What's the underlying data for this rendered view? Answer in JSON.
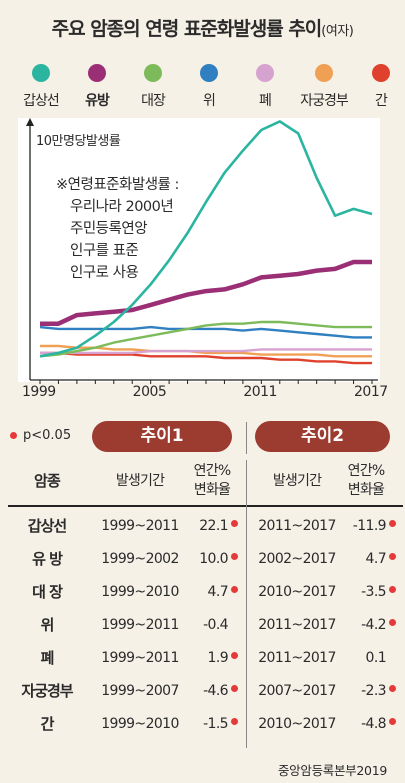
{
  "title": "주요 암종의 연령 표준화발생률 추이",
  "title_suffix": "(여자)",
  "colors": {
    "panel_bg": "#ffffff",
    "page_bg": "#f6f1e7",
    "header_pill": "#9c3b2f",
    "significance_dot": "#e53a3a"
  },
  "legend": [
    {
      "label": "갑상선",
      "color": "#2bb5a0",
      "bold": false
    },
    {
      "label": "유방",
      "color": "#9b2f75",
      "bold": true
    },
    {
      "label": "대장",
      "color": "#7dbb5a",
      "bold": false
    },
    {
      "label": "위",
      "color": "#2f7fc1",
      "bold": false
    },
    {
      "label": "폐",
      "color": "#d6a2cf",
      "bold": false
    },
    {
      "label": "자궁경부",
      "color": "#f0a055",
      "bold": false
    },
    {
      "label": "간",
      "color": "#e0412d",
      "bold": false
    }
  ],
  "chart_data": {
    "type": "line",
    "ylabel": "10만명당발생률",
    "x_ticks": [
      "1999",
      "2005",
      "2011",
      "2017"
    ],
    "x": [
      1999,
      2000,
      2001,
      2002,
      2003,
      2004,
      2005,
      2006,
      2007,
      2008,
      2009,
      2010,
      2011,
      2012,
      2013,
      2014,
      2015,
      2016,
      2017
    ],
    "ylim": [
      0,
      140
    ],
    "series": [
      {
        "name": "갑상선",
        "color": "#2bb5a0",
        "values": [
          8,
          10,
          13,
          20,
          28,
          38,
          50,
          64,
          80,
          98,
          115,
          128,
          140,
          145,
          138,
          112,
          90,
          94,
          91
        ]
      },
      {
        "name": "유방",
        "color": "#9b2f75",
        "values": [
          27,
          27,
          32,
          33,
          34,
          35,
          38,
          41,
          44,
          46,
          47,
          50,
          54,
          55,
          56,
          58,
          59,
          63,
          63
        ]
      },
      {
        "name": "대장",
        "color": "#7dbb5a",
        "values": [
          8,
          9,
          11,
          13,
          16,
          18,
          20,
          22,
          24,
          26,
          27,
          27,
          28,
          28,
          27,
          26,
          25,
          25,
          25
        ]
      },
      {
        "name": "위",
        "color": "#2f7fc1",
        "values": [
          25,
          24,
          24,
          24,
          24,
          24,
          25,
          24,
          24,
          24,
          24,
          23,
          24,
          23,
          22,
          21,
          20,
          19,
          19
        ]
      },
      {
        "name": "폐",
        "color": "#d6a2cf",
        "values": [
          10,
          10,
          10,
          10,
          10,
          10,
          11,
          11,
          11,
          11,
          11,
          11,
          12,
          12,
          12,
          12,
          12,
          12,
          12
        ]
      },
      {
        "name": "자궁경부",
        "color": "#f0a055",
        "values": [
          14,
          14,
          13,
          13,
          12,
          12,
          11,
          11,
          11,
          10,
          10,
          10,
          9,
          9,
          9,
          9,
          8,
          8,
          8
        ]
      },
      {
        "name": "간",
        "color": "#e0412d",
        "values": [
          10,
          10,
          9,
          9,
          9,
          9,
          8,
          8,
          8,
          8,
          7,
          7,
          7,
          6,
          6,
          5,
          5,
          4,
          4
        ]
      }
    ]
  },
  "note": {
    "line1": "※연령표준화발생률 :",
    "line2": "우리나라 2000년",
    "line3": "주민등록연앙",
    "line4": "인구를 표준",
    "line5": "인구로 사용"
  },
  "table": {
    "significance_note": "p<0.05",
    "period1_title": "추이1",
    "period2_title": "추이2",
    "col_cancer": "암종",
    "col_period": "발생기간",
    "col_rate_line1": "연간%",
    "col_rate_line2": "변화율",
    "rows": [
      {
        "name": "갑상선",
        "p1": "1999~2011",
        "r1": "22.1",
        "s1": true,
        "p2": "2011~2017",
        "r2": "-11.9",
        "s2": true
      },
      {
        "name": "유 방",
        "p1": "1999~2002",
        "r1": "10.0",
        "s1": true,
        "p2": "2002~2017",
        "r2": "4.7",
        "s2": true
      },
      {
        "name": "대 장",
        "p1": "1999~2010",
        "r1": "4.7",
        "s1": true,
        "p2": "2010~2017",
        "r2": "-3.5",
        "s2": true
      },
      {
        "name": "위",
        "p1": "1999~2011",
        "r1": "-0.4",
        "s1": false,
        "p2": "2011~2017",
        "r2": "-4.2",
        "s2": true
      },
      {
        "name": "폐",
        "p1": "1999~2011",
        "r1": "1.9",
        "s1": true,
        "p2": "2011~2017",
        "r2": "0.1",
        "s2": false
      },
      {
        "name": "자궁경부",
        "p1": "1999~2007",
        "r1": "-4.6",
        "s1": true,
        "p2": "2007~2017",
        "r2": "-2.3",
        "s2": true
      },
      {
        "name": "간",
        "p1": "1999~2010",
        "r1": "-1.5",
        "s1": true,
        "p2": "2010~2017",
        "r2": "-4.8",
        "s2": true
      }
    ]
  },
  "source": "중앙암등록본부2019"
}
